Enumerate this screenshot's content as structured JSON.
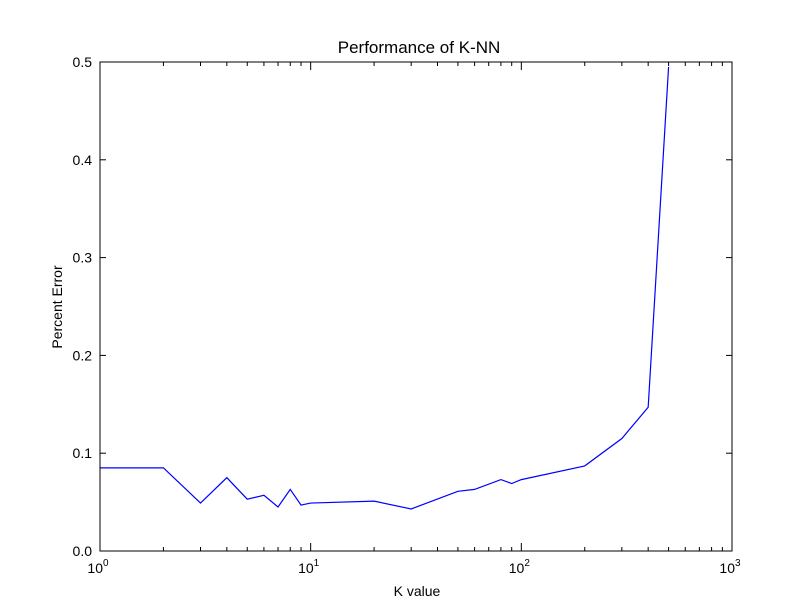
{
  "chart_data": {
    "type": "line",
    "title": "Performance of K-NN",
    "xlabel": "K value",
    "ylabel": "Percent Error",
    "xscale": "log",
    "xlim": [
      1,
      1000
    ],
    "ylim": [
      0.0,
      0.5
    ],
    "grid": false,
    "legend": "none",
    "line_color": "#0000ff",
    "x_ticks": [
      {
        "value": 1,
        "base": "10",
        "exp": "0"
      },
      {
        "value": 10,
        "base": "10",
        "exp": "1"
      },
      {
        "value": 100,
        "base": "10",
        "exp": "2"
      },
      {
        "value": 1000,
        "base": "10",
        "exp": "3"
      }
    ],
    "y_ticks": [
      {
        "value": 0.0,
        "label": "0.0"
      },
      {
        "value": 0.1,
        "label": "0.1"
      },
      {
        "value": 0.2,
        "label": "0.2"
      },
      {
        "value": 0.3,
        "label": "0.3"
      },
      {
        "value": 0.4,
        "label": "0.4"
      },
      {
        "value": 0.5,
        "label": "0.5"
      }
    ],
    "series": [
      {
        "x": [
          1,
          2,
          3,
          4,
          5,
          6,
          7,
          8,
          9,
          10,
          20,
          30,
          50,
          60,
          80,
          90,
          100,
          200,
          300,
          400,
          500
        ],
        "y": [
          0.085,
          0.085,
          0.049,
          0.075,
          0.053,
          0.057,
          0.045,
          0.063,
          0.047,
          0.049,
          0.051,
          0.043,
          0.061,
          0.063,
          0.073,
          0.069,
          0.073,
          0.087,
          0.115,
          0.147,
          0.495
        ]
      }
    ]
  }
}
